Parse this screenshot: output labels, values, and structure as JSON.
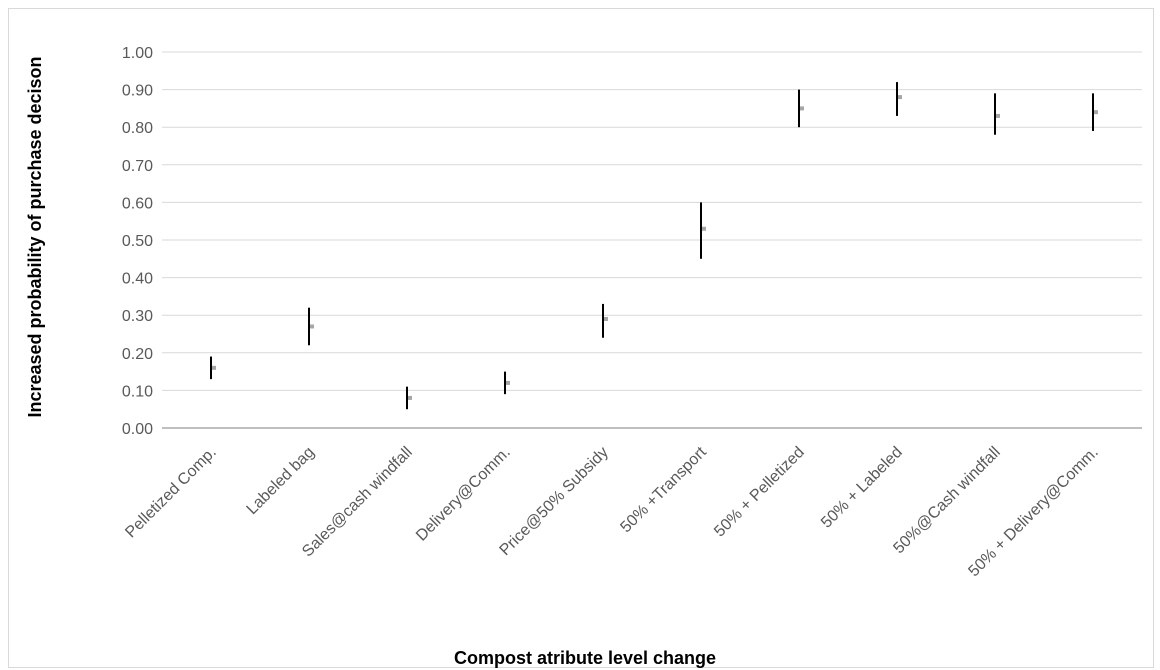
{
  "chart_data": {
    "type": "scatter",
    "title": "",
    "xlabel": "Compost atribute level change",
    "ylabel": "Increased probability of purchase decison",
    "ylim": [
      0,
      1.0
    ],
    "yticks": [
      "0.00",
      "0.10",
      "0.20",
      "0.30",
      "0.40",
      "0.50",
      "0.60",
      "0.70",
      "0.80",
      "0.90",
      "1.00"
    ],
    "grid": true,
    "legend": "none",
    "categories": [
      "Pelletized Comp.",
      "Labeled bag",
      "Sales@cash windfall",
      "Delivery@Comm.",
      "Price@50% Subsidy",
      "50% +Transport",
      "50% + Pelletized",
      "50% + Labeled",
      "50%@Cash windfall",
      "50% +  Delivery@Comm."
    ],
    "series": [
      {
        "values": [
          0.16,
          0.27,
          0.08,
          0.12,
          0.29,
          0.53,
          0.85,
          0.88,
          0.83,
          0.84
        ],
        "upper": [
          0.19,
          0.32,
          0.11,
          0.15,
          0.33,
          0.6,
          0.9,
          0.92,
          0.89,
          0.89
        ],
        "lower": [
          0.13,
          0.22,
          0.05,
          0.09,
          0.24,
          0.45,
          0.8,
          0.83,
          0.78,
          0.79
        ]
      }
    ],
    "colors": {
      "errorbar": "#000000",
      "marker": "#a6a6a6",
      "grid": "#d9d9d9",
      "axis": "#bfbfbf"
    }
  }
}
